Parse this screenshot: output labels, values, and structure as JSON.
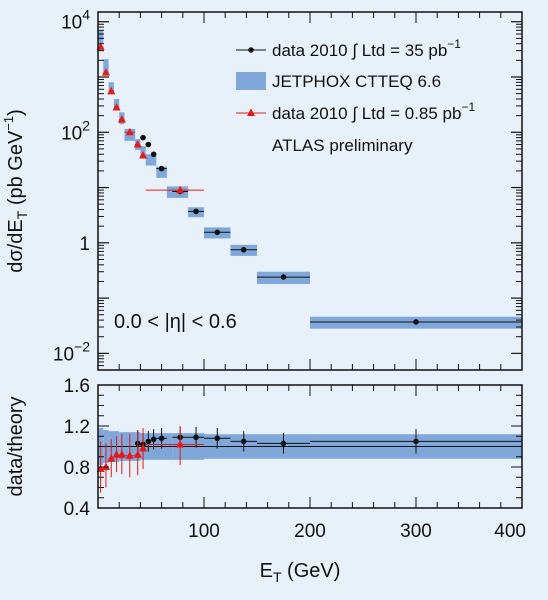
{
  "colors": {
    "background": "#e8f1f9",
    "band": "#7fa7d9",
    "data_black": "#111111",
    "data_red": "#e41a1c"
  },
  "chart_data": [
    {
      "type": "scatter",
      "panel": "top",
      "ylabel": "dσ/dE_T (pb GeV^-1)",
      "yscale": "log",
      "xlim": [
        0,
        400
      ],
      "ylim": [
        0.005,
        15000
      ],
      "y_ticks": [
        {
          "value": 10000,
          "base": "10",
          "exp": "4"
        },
        {
          "value": 100,
          "base": "10",
          "exp": "2"
        },
        {
          "value": 1,
          "base": "1",
          "exp": ""
        },
        {
          "value": 0.01,
          "base": "10",
          "exp": "−2"
        }
      ],
      "legend_position": "top-right",
      "legend": [
        {
          "label": "data 2010 ∫ Ltd = 35 pb",
          "sup": "−1",
          "marker": "dot-black"
        },
        {
          "label": "JETPHOX CTTEQ 6.6",
          "sup": "",
          "marker": "band"
        },
        {
          "label": "data 2010 ∫ Ltd = 0.85 pb",
          "sup": "−1",
          "marker": "triangle-red"
        }
      ],
      "annotations": [
        "ATLAS preliminary",
        "0.0 < |η| < 0.6"
      ],
      "series": [
        {
          "name": "data 2010 ∫ Ltd = 35 pb−1",
          "marker": "circle",
          "color": "#111111",
          "points": [
            {
              "x": 42.5,
              "y": 80,
              "xlo": 40,
              "xhi": 45
            },
            {
              "x": 47.5,
              "y": 60,
              "xlo": 45,
              "xhi": 50
            },
            {
              "x": 52.5,
              "y": 40,
              "xlo": 50,
              "xhi": 55
            },
            {
              "x": 60,
              "y": 22,
              "xlo": 55,
              "xhi": 65
            },
            {
              "x": 77.5,
              "y": 8.5,
              "xlo": 70,
              "xhi": 85
            },
            {
              "x": 92.5,
              "y": 3.7,
              "xlo": 85,
              "xhi": 100
            },
            {
              "x": 112.5,
              "y": 1.55,
              "xlo": 100,
              "xhi": 125
            },
            {
              "x": 137.5,
              "y": 0.75,
              "xlo": 125,
              "xhi": 150
            },
            {
              "x": 175,
              "y": 0.24,
              "xlo": 150,
              "xhi": 200
            },
            {
              "x": 300,
              "y": 0.037,
              "xlo": 200,
              "xhi": 400
            }
          ]
        },
        {
          "name": "data 2010 ∫ Ltd = 0.85 pb−1",
          "marker": "triangle",
          "color": "#e41a1c",
          "points": [
            {
              "x": 2.5,
              "y": 3500,
              "xlo": 0,
              "xhi": 5
            },
            {
              "x": 7.5,
              "y": 1200,
              "xlo": 5,
              "xhi": 10
            },
            {
              "x": 12.5,
              "y": 550,
              "xlo": 10,
              "xhi": 15
            },
            {
              "x": 17.5,
              "y": 280,
              "xlo": 15,
              "xhi": 20
            },
            {
              "x": 22.5,
              "y": 170,
              "xlo": 20,
              "xhi": 25
            },
            {
              "x": 30,
              "y": 100,
              "xlo": 25,
              "xhi": 35
            },
            {
              "x": 37.5,
              "y": 60,
              "xlo": 35,
              "xhi": 40
            },
            {
              "x": 42.5,
              "y": 38,
              "xlo": 40,
              "xhi": 45
            },
            {
              "x": 77.5,
              "y": 9,
              "xlo": 45,
              "xhi": 100
            }
          ]
        },
        {
          "name": "JETPHOX CTTEQ 6.6",
          "style": "band",
          "color": "#7fa7d9",
          "bins": [
            {
              "xlo": 0,
              "xhi": 5,
              "ylo": 4100,
              "yhi": 6800
            },
            {
              "xlo": 5,
              "xhi": 10,
              "ylo": 1200,
              "yhi": 2100
            },
            {
              "xlo": 10,
              "xhi": 15,
              "ylo": 500,
              "yhi": 800
            },
            {
              "xlo": 15,
              "xhi": 20,
              "ylo": 250,
              "yhi": 400
            },
            {
              "xlo": 20,
              "xhi": 25,
              "ylo": 140,
              "yhi": 230
            },
            {
              "xlo": 25,
              "xhi": 35,
              "ylo": 70,
              "yhi": 115
            },
            {
              "xlo": 35,
              "xhi": 40,
              "ylo": 48,
              "yhi": 75
            },
            {
              "xlo": 40,
              "xhi": 45,
              "ylo": 36,
              "yhi": 56
            },
            {
              "xlo": 45,
              "xhi": 55,
              "ylo": 25,
              "yhi": 40
            },
            {
              "xlo": 55,
              "xhi": 65,
              "ylo": 15,
              "yhi": 24
            },
            {
              "xlo": 65,
              "xhi": 85,
              "ylo": 6.5,
              "yhi": 10.5
            },
            {
              "xlo": 85,
              "xhi": 100,
              "ylo": 2.9,
              "yhi": 4.4
            },
            {
              "xlo": 100,
              "xhi": 125,
              "ylo": 1.2,
              "yhi": 1.9
            },
            {
              "xlo": 125,
              "xhi": 150,
              "ylo": 0.58,
              "yhi": 0.92
            },
            {
              "xlo": 150,
              "xhi": 200,
              "ylo": 0.18,
              "yhi": 0.3
            },
            {
              "xlo": 200,
              "xhi": 400,
              "ylo": 0.028,
              "yhi": 0.046
            }
          ]
        }
      ]
    },
    {
      "type": "scatter",
      "panel": "bottom",
      "ylabel": "data/theory",
      "xlabel": "E_T (GeV)",
      "xlim": [
        0,
        400
      ],
      "ylim": [
        0.4,
        1.6
      ],
      "x_ticks": [
        "100",
        "200",
        "300",
        "400"
      ],
      "y_ticks": [
        "0.4",
        "0.8",
        "1.2",
        "1.6"
      ],
      "reference_line": 1,
      "series": [
        {
          "name": "data 2010 ∫ Ltd = 35 pb−1",
          "marker": "circle",
          "color": "#111111",
          "points": [
            {
              "x": 37.5,
              "y": 1.03,
              "xlo": 35,
              "xhi": 40,
              "elo": 0.9,
              "ehi": 1.16
            },
            {
              "x": 42.5,
              "y": 1.02,
              "xlo": 40,
              "xhi": 45,
              "elo": 0.92,
              "ehi": 1.12
            },
            {
              "x": 47.5,
              "y": 1.05,
              "xlo": 45,
              "xhi": 50,
              "elo": 0.95,
              "ehi": 1.15
            },
            {
              "x": 52.5,
              "y": 1.07,
              "xlo": 50,
              "xhi": 55,
              "elo": 0.97,
              "ehi": 1.17
            },
            {
              "x": 60,
              "y": 1.08,
              "xlo": 55,
              "xhi": 65,
              "elo": 0.98,
              "ehi": 1.18
            },
            {
              "x": 77.5,
              "y": 1.09,
              "xlo": 70,
              "xhi": 85,
              "elo": 0.99,
              "ehi": 1.19
            },
            {
              "x": 92.5,
              "y": 1.09,
              "xlo": 85,
              "xhi": 100,
              "elo": 0.99,
              "ehi": 1.19
            },
            {
              "x": 112.5,
              "y": 1.08,
              "xlo": 100,
              "xhi": 125,
              "elo": 0.98,
              "ehi": 1.18
            },
            {
              "x": 137.5,
              "y": 1.05,
              "xlo": 125,
              "xhi": 150,
              "elo": 0.95,
              "ehi": 1.15
            },
            {
              "x": 175,
              "y": 1.03,
              "xlo": 150,
              "xhi": 200,
              "elo": 0.93,
              "ehi": 1.13
            },
            {
              "x": 300,
              "y": 1.05,
              "xlo": 200,
              "xhi": 400,
              "elo": 0.93,
              "ehi": 1.17
            }
          ]
        },
        {
          "name": "data 2010 ∫ Ltd = 0.85 pb−1",
          "marker": "triangle",
          "color": "#e41a1c",
          "points": [
            {
              "x": 2.5,
              "y": 0.78,
              "xlo": 0,
              "xhi": 5,
              "elo": 0.55,
              "ehi": 1.05
            },
            {
              "x": 7.5,
              "y": 0.8,
              "xlo": 5,
              "xhi": 10,
              "elo": 0.6,
              "ehi": 1.03
            },
            {
              "x": 12.5,
              "y": 0.88,
              "xlo": 10,
              "xhi": 15,
              "elo": 0.7,
              "ehi": 1.07
            },
            {
              "x": 17.5,
              "y": 0.92,
              "xlo": 15,
              "xhi": 20,
              "elo": 0.75,
              "ehi": 1.1
            },
            {
              "x": 22.5,
              "y": 0.92,
              "xlo": 20,
              "xhi": 25,
              "elo": 0.73,
              "ehi": 1.12
            },
            {
              "x": 30,
              "y": 0.91,
              "xlo": 25,
              "xhi": 35,
              "elo": 0.7,
              "ehi": 1.12
            },
            {
              "x": 37.5,
              "y": 0.92,
              "xlo": 35,
              "xhi": 40,
              "elo": 0.72,
              "ehi": 1.14
            },
            {
              "x": 42.5,
              "y": 0.98,
              "xlo": 40,
              "xhi": 45,
              "elo": 0.78,
              "ehi": 1.18
            },
            {
              "x": 77.5,
              "y": 1.02,
              "xlo": 45,
              "xhi": 100,
              "elo": 0.82,
              "ehi": 1.2
            }
          ]
        },
        {
          "name": "JETPHOX CTTEQ 6.6",
          "style": "band",
          "color": "#7fa7d9",
          "bins": [
            {
              "xlo": 0,
              "xhi": 5,
              "ylo": 0.82,
              "yhi": 1.18
            },
            {
              "xlo": 5,
              "xhi": 10,
              "ylo": 0.84,
              "yhi": 1.16
            },
            {
              "xlo": 10,
              "xhi": 20,
              "ylo": 0.85,
              "yhi": 1.15
            },
            {
              "xlo": 20,
              "xhi": 40,
              "ylo": 0.86,
              "yhi": 1.14
            },
            {
              "xlo": 40,
              "xhi": 70,
              "ylo": 0.87,
              "yhi": 1.13
            },
            {
              "xlo": 70,
              "xhi": 100,
              "ylo": 0.87,
              "yhi": 1.13
            },
            {
              "xlo": 100,
              "xhi": 200,
              "ylo": 0.88,
              "yhi": 1.12
            },
            {
              "xlo": 200,
              "xhi": 400,
              "ylo": 0.88,
              "yhi": 1.12
            }
          ]
        }
      ]
    }
  ]
}
